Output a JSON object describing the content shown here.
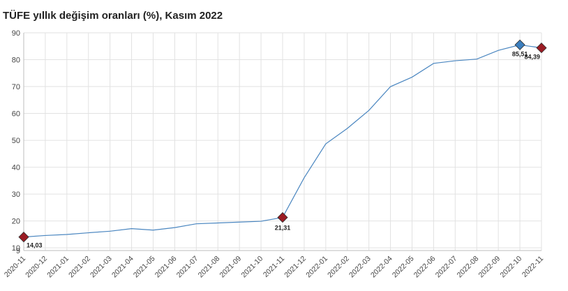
{
  "chart_data": {
    "type": "line",
    "title": "TÜFE yıllık değişim oranları (%), Kasım 2022",
    "xlabel": "",
    "ylabel": "",
    "categories": [
      "2020-11",
      "2020-12",
      "2021-01",
      "2021-02",
      "2021-03",
      "2021-04",
      "2021-05",
      "2021-06",
      "2021-07",
      "2021-08",
      "2021-09",
      "2021-10",
      "2021-11",
      "2021-12",
      "2022-01",
      "2022-02",
      "2022-03",
      "2022-04",
      "2022-05",
      "2022-06",
      "2022-07",
      "2022-08",
      "2022-09",
      "2022-10",
      "2022-11"
    ],
    "series": [
      {
        "name": "",
        "values": [
          14.03,
          14.6,
          14.97,
          15.61,
          16.19,
          17.14,
          16.59,
          17.53,
          18.95,
          19.25,
          19.58,
          19.89,
          21.31,
          36.08,
          48.69,
          54.44,
          61.14,
          69.97,
          73.5,
          78.62,
          79.6,
          80.21,
          83.45,
          85.51,
          84.39
        ]
      }
    ],
    "ylim": [
      9,
      90
    ],
    "yticks": [
      9,
      10,
      20,
      30,
      40,
      50,
      60,
      70,
      80,
      90
    ],
    "grid": true,
    "legend": "none",
    "data_labels": [
      {
        "category": "2020-11",
        "text": "14,03",
        "marker": "diamond",
        "color": "#9b1c24"
      },
      {
        "category": "2021-11",
        "text": "21,31",
        "marker": "diamond",
        "color": "#9b1c24"
      },
      {
        "category": "2022-10",
        "text": "85,51",
        "marker": "diamond",
        "color": "#3b7fbf"
      },
      {
        "category": "2022-11",
        "text": "84,39",
        "marker": "diamond",
        "color": "#9b1c24"
      }
    ],
    "colors": {
      "line": "#4a86c0",
      "grid": "#e2e2e2",
      "axis": "#bdbdbd",
      "min_marker": "#9b1c24",
      "max_marker": "#3b7fbf",
      "marker_stroke": "#2b2b2b"
    }
  }
}
